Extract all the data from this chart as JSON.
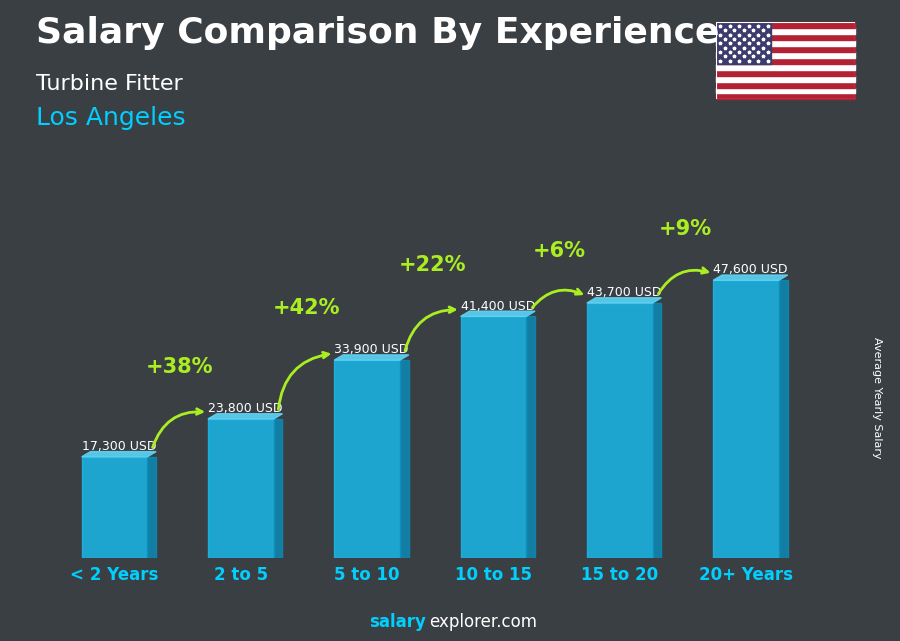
{
  "title": "Salary Comparison By Experience",
  "subtitle1": "Turbine Fitter",
  "subtitle2": "Los Angeles",
  "ylabel": "Average Yearly Salary",
  "categories": [
    "< 2 Years",
    "2 to 5",
    "5 to 10",
    "10 to 15",
    "15 to 20",
    "20+ Years"
  ],
  "values": [
    17300,
    23800,
    33900,
    41400,
    43700,
    47600
  ],
  "labels": [
    "17,300 USD",
    "23,800 USD",
    "33,900 USD",
    "41,400 USD",
    "43,700 USD",
    "47,600 USD"
  ],
  "pct_labels": [
    "+38%",
    "+42%",
    "+22%",
    "+6%",
    "+9%"
  ],
  "bar_color_face": "#1ab8e8",
  "bar_color_side": "#0d8ab5",
  "bar_color_top": "#5dd4f5",
  "bg_color": "#3a3f44",
  "title_color": "#FFFFFF",
  "subtitle1_color": "#FFFFFF",
  "subtitle2_color": "#00cfff",
  "label_color": "#FFFFFF",
  "pct_color": "#aaee22",
  "footer_bold_color": "#00cfff",
  "footer_normal_color": "#FFFFFF",
  "xticklabel_color": "#00cfff",
  "ylabel_color": "#FFFFFF",
  "ylim_max": 55000,
  "title_fontsize": 26,
  "subtitle1_fontsize": 16,
  "subtitle2_fontsize": 18,
  "label_fontsize": 9,
  "pct_fontsize": 15,
  "xticklabel_fontsize": 12,
  "footer_fontsize": 12,
  "ylabel_fontsize": 8
}
